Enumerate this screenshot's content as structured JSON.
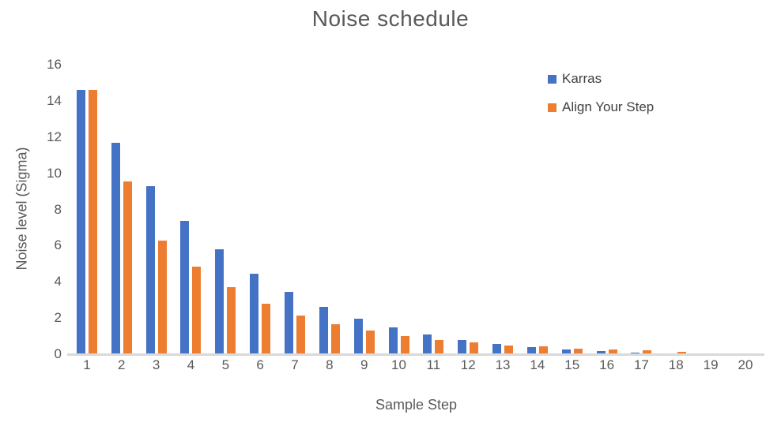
{
  "chart_data": {
    "type": "bar",
    "title": "Noise schedule",
    "xlabel": "Sample Step",
    "ylabel": "Noise level (Sigma)",
    "categories": [
      "1",
      "2",
      "3",
      "4",
      "5",
      "6",
      "7",
      "8",
      "9",
      "10",
      "11",
      "12",
      "13",
      "14",
      "15",
      "16",
      "17",
      "18",
      "19",
      "20"
    ],
    "series": [
      {
        "name": "Karras",
        "color": "#4472C4",
        "values": [
          14.6,
          11.7,
          9.3,
          7.35,
          5.8,
          4.45,
          3.45,
          2.6,
          1.95,
          1.5,
          1.08,
          0.78,
          0.55,
          0.4,
          0.25,
          0.16,
          0.1,
          0.05,
          0.03,
          0.02
        ]
      },
      {
        "name": "Align Your Step",
        "color": "#ED7D31",
        "values": [
          14.6,
          9.55,
          6.3,
          4.85,
          3.7,
          2.8,
          2.15,
          1.65,
          1.3,
          1.0,
          0.8,
          0.65,
          0.5,
          0.45,
          0.32,
          0.25,
          0.2,
          0.12,
          0.06,
          0.03
        ]
      }
    ],
    "ylim": [
      0,
      16
    ],
    "yticks": [
      0,
      2,
      4,
      6,
      8,
      10,
      12,
      14,
      16
    ],
    "grid": false,
    "legend_position": "top-right",
    "axis_line_color": "#D9D9D9",
    "text_color": "#595959",
    "background_color": "#FFFFFF"
  }
}
